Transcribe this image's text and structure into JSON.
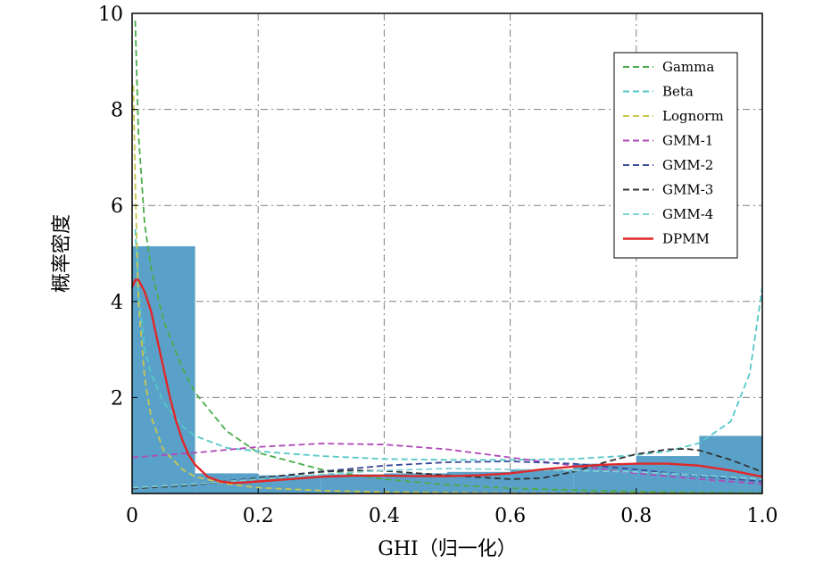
{
  "chart_data": {
    "type": "line",
    "xlabel": "GHI（归一化）",
    "ylabel": "概率密度",
    "xlim": [
      0,
      1.0
    ],
    "ylim": [
      0,
      10
    ],
    "x_ticks": [
      0,
      0.2,
      0.4,
      0.6,
      0.8,
      1.0
    ],
    "x_tick_labels": [
      "0",
      "0.2",
      "0.4",
      "0.6",
      "0.8",
      "1.0"
    ],
    "y_ticks": [
      2,
      4,
      6,
      8,
      10
    ],
    "y_tick_labels": [
      "2",
      "4",
      "6",
      "8",
      "10"
    ],
    "grid": true,
    "legend_position": "top-right",
    "histogram": {
      "color": "#5aa1c9",
      "bins": [
        {
          "x0": 0.0,
          "x1": 0.1,
          "value": 5.15
        },
        {
          "x0": 0.1,
          "x1": 0.2,
          "value": 0.42
        },
        {
          "x0": 0.2,
          "x1": 0.3,
          "value": 0.38
        },
        {
          "x0": 0.3,
          "x1": 0.4,
          "value": 0.4
        },
        {
          "x0": 0.4,
          "x1": 0.5,
          "value": 0.42
        },
        {
          "x0": 0.5,
          "x1": 0.6,
          "value": 0.45
        },
        {
          "x0": 0.6,
          "x1": 0.7,
          "value": 0.5
        },
        {
          "x0": 0.7,
          "x1": 0.8,
          "value": 0.62
        },
        {
          "x0": 0.8,
          "x1": 0.9,
          "value": 0.78
        },
        {
          "x0": 0.9,
          "x1": 1.0,
          "value": 1.2
        }
      ]
    },
    "series": [
      {
        "name": "Gamma",
        "color": "#4aac4a",
        "dash": "dashed",
        "x": [
          0.005,
          0.01,
          0.02,
          0.03,
          0.05,
          0.08,
          0.1,
          0.15,
          0.2,
          0.3,
          0.4,
          0.5,
          0.6,
          0.7,
          0.8,
          0.9,
          1.0
        ],
        "y": [
          9.85,
          7.5,
          5.6,
          4.7,
          3.6,
          2.6,
          2.1,
          1.3,
          0.85,
          0.5,
          0.3,
          0.18,
          0.11,
          0.07,
          0.04,
          0.02,
          0.01
        ]
      },
      {
        "name": "Beta",
        "color": "#56c8c8",
        "dash": "dashed",
        "x": [
          0.005,
          0.01,
          0.02,
          0.03,
          0.05,
          0.08,
          0.1,
          0.15,
          0.2,
          0.3,
          0.4,
          0.5,
          0.6,
          0.7,
          0.8,
          0.85,
          0.9,
          0.95,
          0.98,
          1.0
        ],
        "y": [
          5.5,
          4.2,
          3.0,
          2.5,
          1.9,
          1.4,
          1.2,
          0.95,
          0.88,
          0.78,
          0.72,
          0.7,
          0.7,
          0.72,
          0.8,
          0.88,
          1.05,
          1.5,
          2.5,
          4.3
        ]
      },
      {
        "name": "Lognorm",
        "color": "#c8c850",
        "dash": "dashed",
        "x": [
          0.002,
          0.005,
          0.01,
          0.02,
          0.03,
          0.05,
          0.08,
          0.1,
          0.15,
          0.2,
          0.3,
          0.4,
          0.6,
          0.8,
          1.0
        ],
        "y": [
          8.5,
          6.5,
          4.0,
          2.4,
          1.6,
          0.9,
          0.5,
          0.35,
          0.2,
          0.12,
          0.06,
          0.03,
          0.01,
          0.01,
          0.0
        ]
      },
      {
        "name": "GMM-1",
        "color": "#b04ab8",
        "dash": "dashed",
        "x": [
          0.0,
          0.1,
          0.2,
          0.3,
          0.4,
          0.5,
          0.6,
          0.7,
          0.8,
          0.9,
          1.0
        ],
        "y": [
          0.75,
          0.85,
          0.97,
          1.04,
          1.02,
          0.92,
          0.75,
          0.58,
          0.42,
          0.3,
          0.2
        ]
      },
      {
        "name": "GMM-2",
        "color": "#3a4a9a",
        "dash": "dashed",
        "x": [
          0.0,
          0.1,
          0.2,
          0.3,
          0.4,
          0.5,
          0.6,
          0.7,
          0.8,
          0.9,
          1.0
        ],
        "y": [
          0.12,
          0.2,
          0.32,
          0.46,
          0.58,
          0.65,
          0.67,
          0.62,
          0.5,
          0.36,
          0.25
        ]
      },
      {
        "name": "GMM-3",
        "color": "#333333",
        "dash": "dashed",
        "x": [
          0.0,
          0.1,
          0.2,
          0.3,
          0.35,
          0.4,
          0.5,
          0.6,
          0.65,
          0.7,
          0.75,
          0.8,
          0.85,
          0.88,
          0.9,
          0.95,
          1.0
        ],
        "y": [
          0.1,
          0.18,
          0.32,
          0.45,
          0.48,
          0.47,
          0.38,
          0.3,
          0.32,
          0.45,
          0.65,
          0.82,
          0.92,
          0.93,
          0.9,
          0.7,
          0.45
        ]
      },
      {
        "name": "GMM-4",
        "color": "#7fd2d8",
        "dash": "dashed",
        "x": [
          0.0,
          0.1,
          0.2,
          0.3,
          0.4,
          0.5,
          0.6,
          0.7,
          0.8,
          0.9,
          1.0
        ],
        "y": [
          0.12,
          0.2,
          0.3,
          0.4,
          0.48,
          0.52,
          0.5,
          0.48,
          0.45,
          0.38,
          0.3
        ]
      },
      {
        "name": "DPMM",
        "color": "#e02828",
        "dash": "solid",
        "x": [
          0.0,
          0.005,
          0.01,
          0.02,
          0.03,
          0.04,
          0.05,
          0.06,
          0.07,
          0.08,
          0.09,
          0.1,
          0.12,
          0.14,
          0.16,
          0.18,
          0.2,
          0.25,
          0.3,
          0.35,
          0.4,
          0.45,
          0.5,
          0.55,
          0.6,
          0.65,
          0.7,
          0.75,
          0.8,
          0.85,
          0.9,
          0.95,
          1.0
        ],
        "y": [
          4.3,
          4.45,
          4.45,
          4.2,
          3.8,
          3.2,
          2.6,
          2.0,
          1.5,
          1.1,
          0.8,
          0.6,
          0.35,
          0.25,
          0.22,
          0.23,
          0.25,
          0.3,
          0.35,
          0.37,
          0.37,
          0.36,
          0.36,
          0.38,
          0.42,
          0.5,
          0.56,
          0.6,
          0.62,
          0.62,
          0.58,
          0.48,
          0.35
        ]
      }
    ]
  }
}
